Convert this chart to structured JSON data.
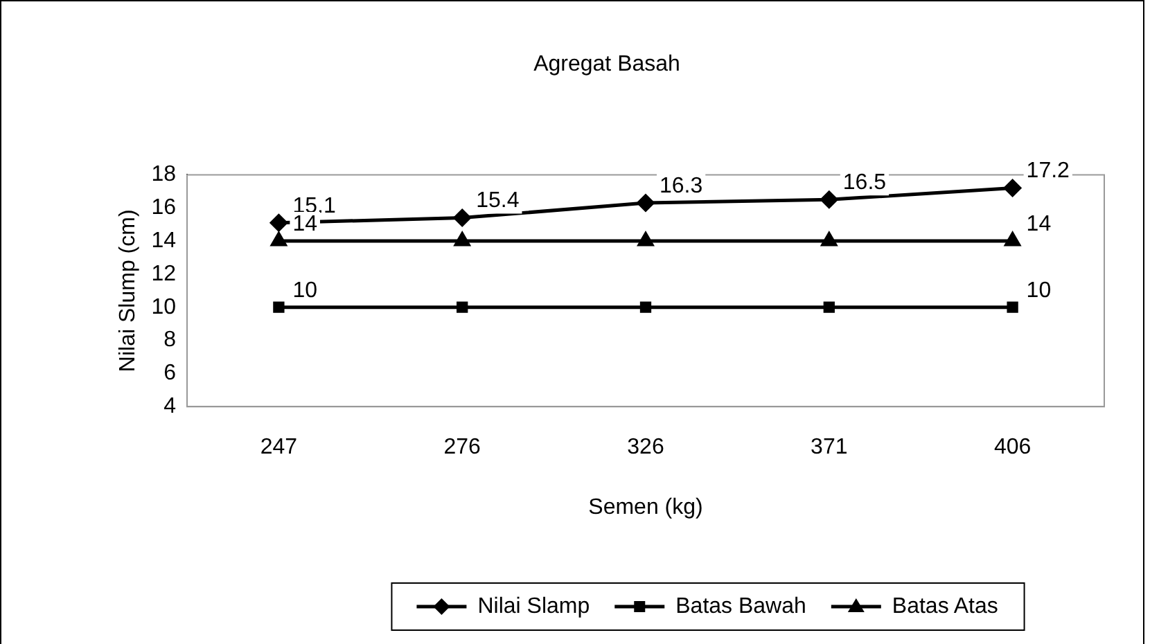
{
  "chart_data": {
    "type": "line",
    "title": "Agregat Basah",
    "xlabel": "Semen (kg)",
    "ylabel": "Nilai Slump (cm)",
    "categories": [
      "247",
      "276",
      "326",
      "371",
      "406"
    ],
    "series": [
      {
        "name": "Nilai Slamp",
        "color": "#000000",
        "marker": "diamond",
        "values": [
          15.1,
          15.4,
          16.3,
          16.5,
          17.2
        ],
        "value_labels": [
          "15.1",
          "15.4",
          "16.3",
          "16.5",
          "17.2"
        ]
      },
      {
        "name": "Batas Bawah",
        "color": "#000000",
        "marker": "square",
        "values": [
          10,
          10,
          10,
          10,
          10
        ],
        "value_labels": [
          "10",
          null,
          null,
          null,
          "10"
        ]
      },
      {
        "name": "Batas Atas",
        "color": "#000000",
        "marker": "triangle",
        "values": [
          14,
          14,
          14,
          14,
          14
        ],
        "value_labels": [
          "14",
          null,
          null,
          null,
          "14"
        ]
      }
    ],
    "ylim": [
      4,
      18
    ],
    "yticks": [
      4,
      6,
      8,
      10,
      12,
      14,
      16,
      18
    ],
    "grid": false,
    "legend": "bottom",
    "line_style": "solid"
  }
}
